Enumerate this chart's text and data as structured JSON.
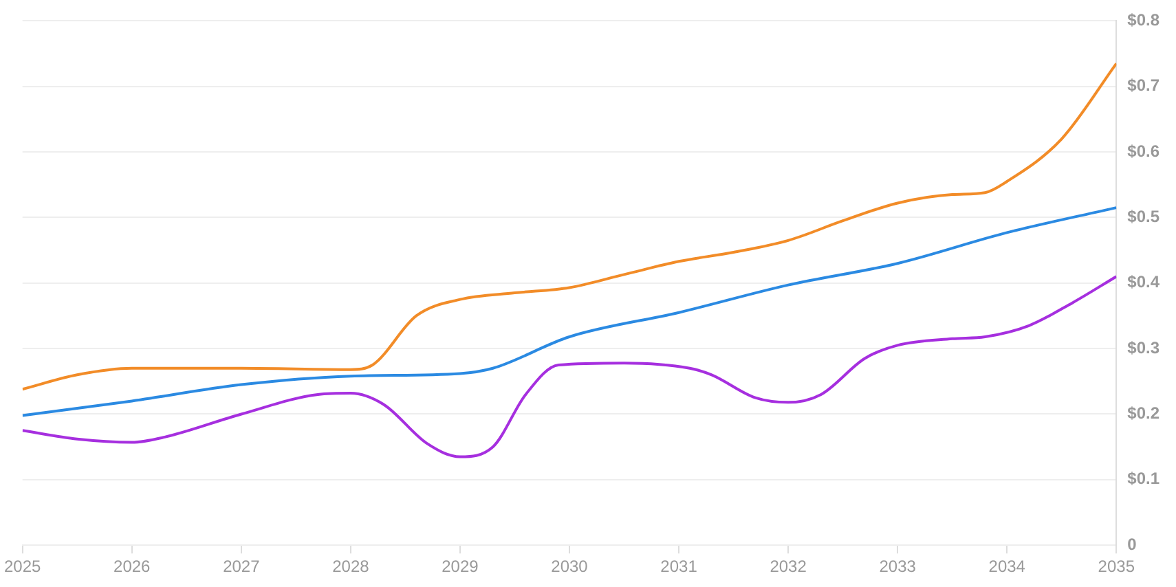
{
  "chart_data": {
    "type": "line",
    "grid": "y",
    "legend": false,
    "marker": "none",
    "line_style": "solid",
    "xlim": [
      2025,
      2035
    ],
    "xticks": [
      2025,
      2026,
      2027,
      2028,
      2029,
      2030,
      2031,
      2032,
      2033,
      2034,
      2035
    ],
    "ylim": [
      0,
      0.8
    ],
    "yticks": [
      {
        "value": 0,
        "label": "0"
      },
      {
        "value": 0.1,
        "label": "$0.1"
      },
      {
        "value": 0.2,
        "label": "$0.2"
      },
      {
        "value": 0.3,
        "label": "$0.3"
      },
      {
        "value": 0.4,
        "label": "$0.4"
      },
      {
        "value": 0.5,
        "label": "$0.5"
      },
      {
        "value": 0.6,
        "label": "$0.6"
      },
      {
        "value": 0.7,
        "label": "$0.7"
      },
      {
        "value": 0.8,
        "label": "$0.8"
      }
    ],
    "series": [
      {
        "color": "#f28c28",
        "x": [
          2025,
          2025.5,
          2026,
          2027,
          2028,
          2028.2,
          2028.6,
          2029,
          2029.5,
          2030,
          2030.5,
          2031,
          2031.5,
          2032,
          2032.5,
          2033,
          2033.5,
          2033.8,
          2034,
          2034.5,
          2035
        ],
        "values": [
          0.238,
          0.26,
          0.27,
          0.27,
          0.268,
          0.275,
          0.35,
          0.375,
          0.385,
          0.393,
          0.413,
          0.433,
          0.447,
          0.465,
          0.495,
          0.522,
          0.535,
          0.538,
          0.555,
          0.62,
          0.735
        ]
      },
      {
        "color": "#2b8ae2",
        "x": [
          2025,
          2026,
          2027,
          2028,
          2029,
          2029.3,
          2030,
          2031,
          2032,
          2033,
          2034,
          2035
        ],
        "values": [
          0.198,
          0.22,
          0.245,
          0.258,
          0.262,
          0.27,
          0.318,
          0.355,
          0.397,
          0.43,
          0.477,
          0.515
        ]
      },
      {
        "color": "#a62fdf",
        "x": [
          2025,
          2025.5,
          2026,
          2026.3,
          2027,
          2027.7,
          2028,
          2028.3,
          2028.7,
          2029,
          2029.3,
          2029.6,
          2029.9,
          2030.5,
          2031.1,
          2031.3,
          2031.7,
          2032,
          2032.3,
          2032.7,
          2033,
          2033.5,
          2033.8,
          2034.2,
          2034.6,
          2035
        ],
        "values": [
          0.175,
          0.162,
          0.157,
          0.165,
          0.2,
          0.23,
          0.232,
          0.215,
          0.155,
          0.135,
          0.15,
          0.23,
          0.275,
          0.278,
          0.27,
          0.26,
          0.225,
          0.218,
          0.23,
          0.285,
          0.305,
          0.315,
          0.318,
          0.335,
          0.37,
          0.41
        ]
      }
    ]
  }
}
